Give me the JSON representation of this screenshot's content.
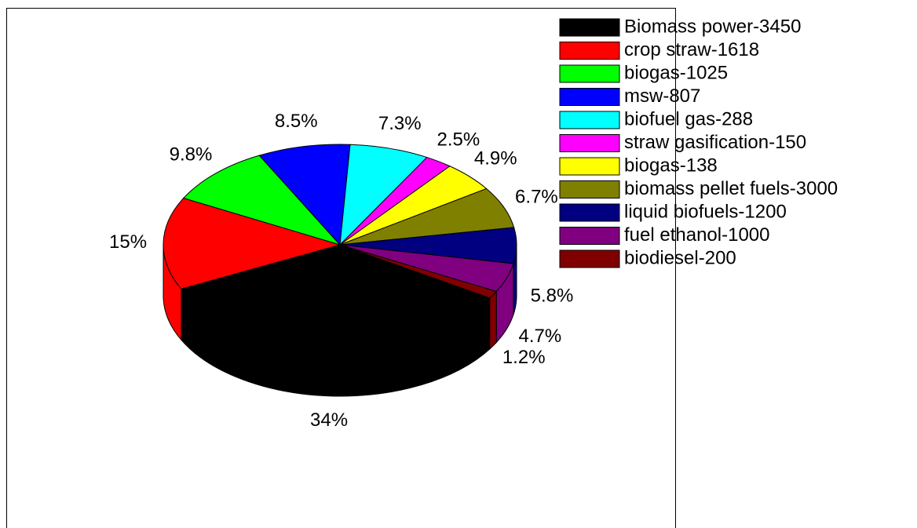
{
  "chart_data": {
    "type": "pie",
    "categories": [
      "Biomass power-3450",
      "crop straw-1618",
      "biogas-1025",
      "msw-807",
      "biofuel gas-288",
      "straw gasification-150",
      "biogas-138",
      "biomass pellet fuels-3000",
      "liquid biofuels-1200",
      "fuel ethanol-1000",
      "biodiesel-200"
    ],
    "values": [
      34,
      15,
      9.8,
      8.5,
      7.3,
      2.5,
      4.9,
      6.7,
      5.8,
      4.7,
      1.2
    ],
    "value_labels": [
      "34%",
      "15%",
      "9.8%",
      "8.5%",
      "7.3%",
      "2.5%",
      "4.9%",
      "6.7%",
      "5.8%",
      "4.7%",
      "1.2%"
    ],
    "colors": [
      "#000000",
      "#ff0000",
      "#00ff00",
      "#0000ff",
      "#00ffff",
      "#ff00ff",
      "#ffff00",
      "#808000",
      "#000080",
      "#800080",
      "#800000"
    ],
    "legend": "upper right"
  }
}
